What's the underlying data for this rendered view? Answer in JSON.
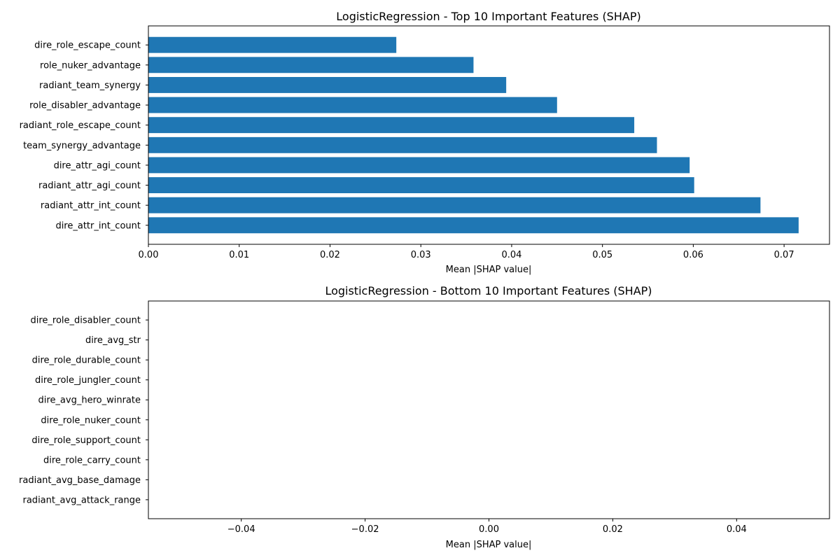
{
  "chart_data": [
    {
      "type": "bar",
      "orientation": "horizontal",
      "title": "LogisticRegression - Top 10 Important Features (SHAP)",
      "xlabel": "Mean |SHAP value|",
      "ylabel": "",
      "bar_color": "#1f77b4",
      "xlim": [
        0,
        0.075
      ],
      "xticks": [
        0.0,
        0.01,
        0.02,
        0.03,
        0.04,
        0.05,
        0.06,
        0.07
      ],
      "xtick_labels": [
        "0.00",
        "0.01",
        "0.02",
        "0.03",
        "0.04",
        "0.05",
        "0.06",
        "0.07"
      ],
      "categories": [
        "dire_attr_int_count",
        "radiant_attr_int_count",
        "radiant_attr_agi_count",
        "dire_attr_agi_count",
        "team_synergy_advantage",
        "radiant_role_escape_count",
        "role_disabler_advantage",
        "radiant_team_synergy",
        "role_nuker_advantage",
        "dire_role_escape_count"
      ],
      "values": [
        0.0716,
        0.0674,
        0.0601,
        0.0596,
        0.056,
        0.0535,
        0.045,
        0.0394,
        0.0358,
        0.0273
      ],
      "grid": false
    },
    {
      "type": "bar",
      "orientation": "horizontal",
      "title": "LogisticRegression - Bottom 10 Important Features (SHAP)",
      "xlabel": "Mean |SHAP value|",
      "ylabel": "",
      "bar_color": "#1f77b4",
      "xlim": [
        -0.055,
        0.055
      ],
      "xticks": [
        -0.04,
        -0.02,
        0.0,
        0.02,
        0.04
      ],
      "xtick_labels": [
        "−0.04",
        "−0.02",
        "0.00",
        "0.02",
        "0.04"
      ],
      "categories": [
        "radiant_avg_attack_range",
        "radiant_avg_base_damage",
        "dire_role_carry_count",
        "dire_role_support_count",
        "dire_role_nuker_count",
        "dire_avg_hero_winrate",
        "dire_role_jungler_count",
        "dire_role_durable_count",
        "dire_avg_str",
        "dire_role_disabler_count"
      ],
      "values": [
        0,
        0,
        0,
        0,
        0,
        0,
        0,
        0,
        0,
        0
      ],
      "grid": false
    }
  ]
}
